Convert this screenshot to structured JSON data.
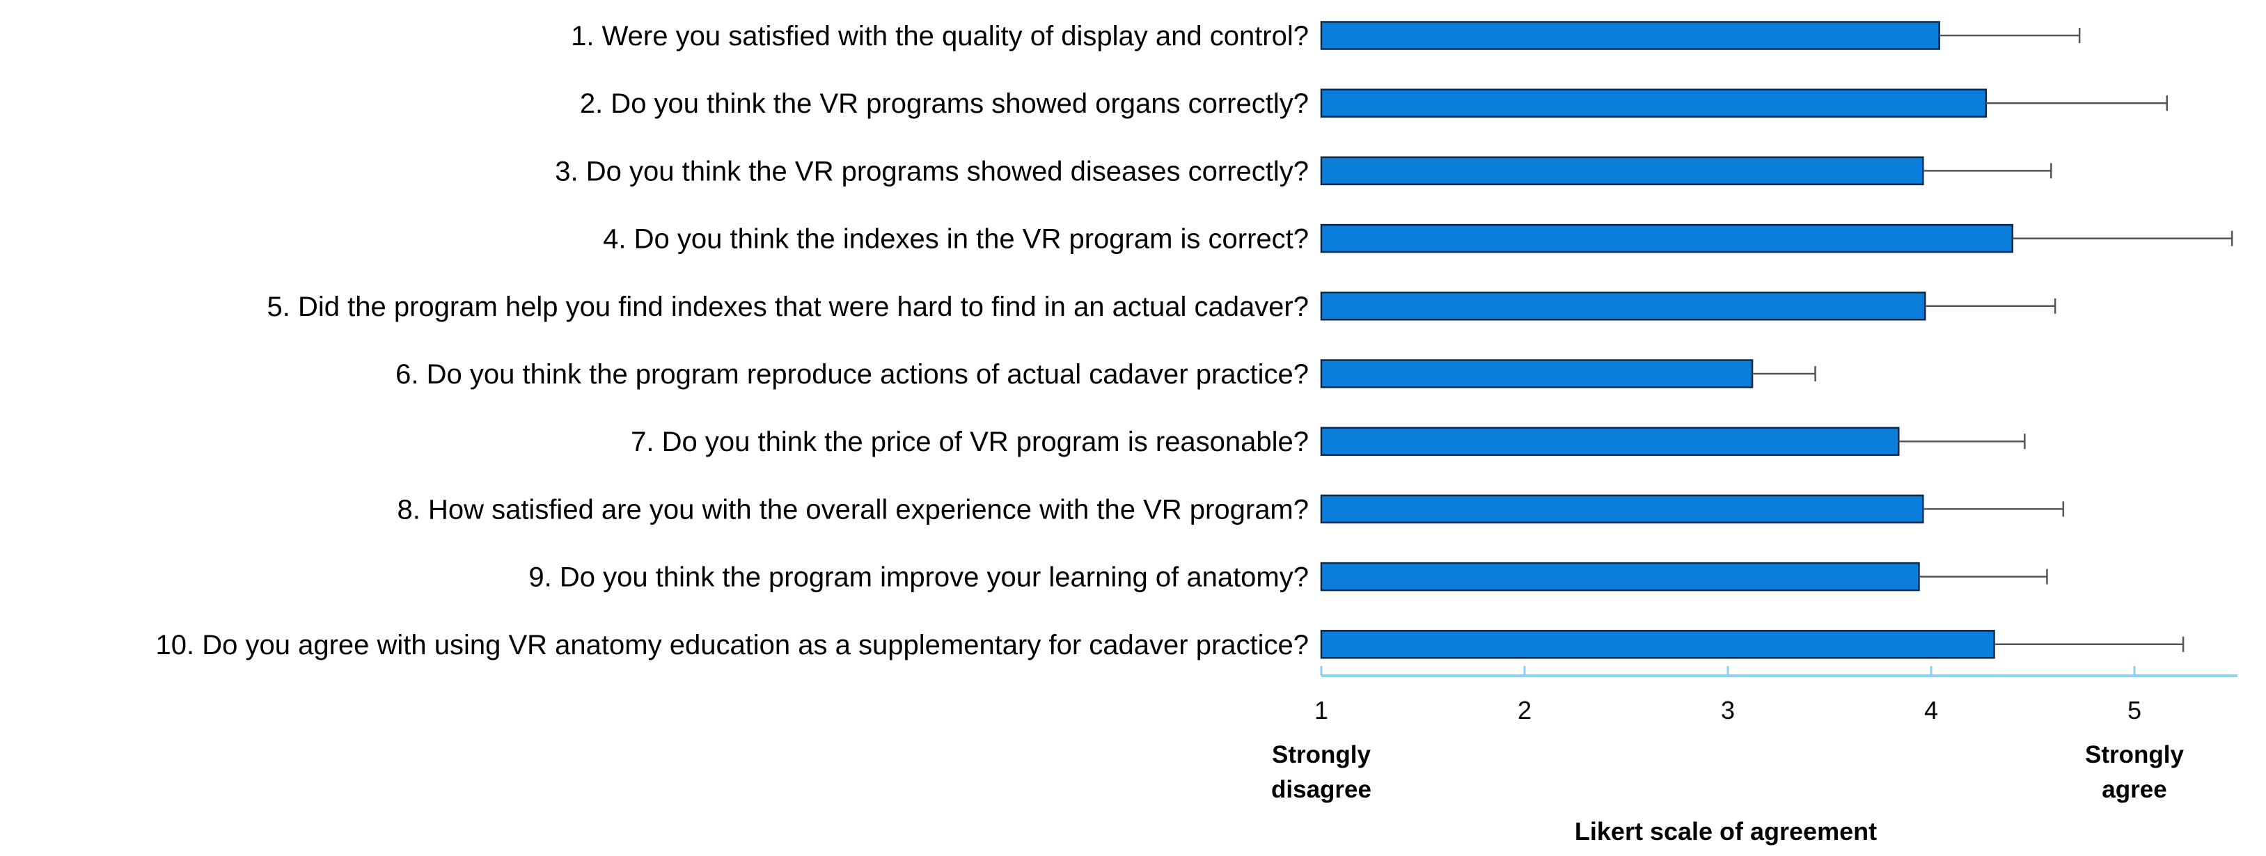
{
  "chart_data": {
    "type": "bar",
    "orientation": "horizontal",
    "title": "",
    "categories": [
      "1. Were you satisfied with the quality of display and control?",
      "2. Do you think the VR programs showed organs correctly?",
      "3. Do you think the VR programs showed diseases correctly?",
      "4. Do you think the indexes in the VR program is correct?",
      "5. Did the program help you find indexes that were hard to find in an actual cadaver?",
      "6. Do you think the program reproduce actions of actual cadaver practice?",
      "7. Do you think the price of VR program is reasonable?",
      "8. How satisfied are you with the overall experience with the VR program?",
      "9. Do you think the program improve your learning of anatomy?",
      "10. Do you agree with using VR anatomy education as a supplementary for cadaver practice?"
    ],
    "values": [
      4.04,
      4.27,
      3.96,
      4.4,
      3.97,
      3.12,
      3.84,
      3.96,
      3.94,
      4.31
    ],
    "error_plus": [
      0.69,
      0.89,
      0.63,
      1.08,
      0.64,
      0.31,
      0.62,
      0.69,
      0.63,
      0.93
    ],
    "xlim": [
      1,
      5.5
    ],
    "xticks": [
      "1",
      "2",
      "3",
      "4",
      "5"
    ],
    "xlabel": "Likert scale of agreement",
    "anchor_left": [
      "Strongly",
      "disagree"
    ],
    "anchor_right": [
      "Strongly",
      "agree"
    ],
    "bar_color": "#0b7dda",
    "bar_edge_color": "#0a2a4d",
    "axis_color": "#8fd0f5",
    "error_color": "#555555"
  }
}
